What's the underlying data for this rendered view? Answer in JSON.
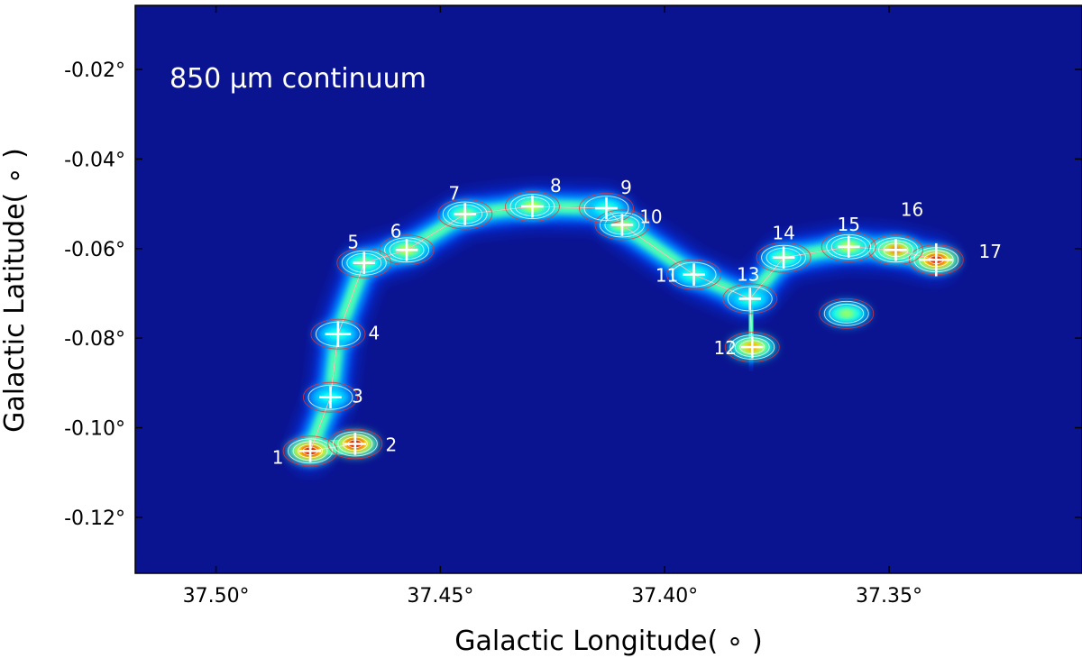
{
  "chart_data": {
    "type": "heatmap",
    "title": "850 μm continuum",
    "xlabel": "Galactic Longitude( ∘ )",
    "ylabel": "Galactic Latitude( ∘ )",
    "x_inverted": true,
    "xlim": [
      37.518,
      37.307
    ],
    "ylim": [
      -0.1325,
      -0.0057
    ],
    "xticks": [
      37.5,
      37.45,
      37.4,
      37.35
    ],
    "xtick_labels": [
      "37.50°",
      "37.45°",
      "37.40°",
      "37.35°"
    ],
    "yticks": [
      -0.02,
      -0.04,
      -0.06,
      -0.08,
      -0.1,
      -0.12
    ],
    "ytick_labels": [
      "-0.02°",
      "-0.04°",
      "-0.06°",
      "-0.08°",
      "-0.10°",
      "-0.12°"
    ],
    "colormap": "jet",
    "colors": {
      "background": "#0a1490",
      "contour_low": "#ff2a2a",
      "contour": "#ffffff",
      "marker": "#ffffff"
    },
    "sources": [
      {
        "id": "1",
        "l": 37.479,
        "b": -0.1052
      },
      {
        "id": "2",
        "l": 37.469,
        "b": -0.1036
      },
      {
        "id": "3",
        "l": 37.4745,
        "b": -0.0932
      },
      {
        "id": "4",
        "l": 37.4728,
        "b": -0.0791
      },
      {
        "id": "5",
        "l": 37.467,
        "b": -0.0632
      },
      {
        "id": "6",
        "l": 37.4575,
        "b": -0.0603
      },
      {
        "id": "7",
        "l": 37.4445,
        "b": -0.0523
      },
      {
        "id": "8",
        "l": 37.4295,
        "b": -0.0506
      },
      {
        "id": "9",
        "l": 37.413,
        "b": -0.051
      },
      {
        "id": "10",
        "l": 37.4095,
        "b": -0.0547
      },
      {
        "id": "11",
        "l": 37.3935,
        "b": -0.0658
      },
      {
        "id": "12",
        "l": 37.3805,
        "b": -0.082
      },
      {
        "id": "13",
        "l": 37.381,
        "b": -0.0712
      },
      {
        "id": "14",
        "l": 37.3735,
        "b": -0.062
      },
      {
        "id": "15",
        "l": 37.359,
        "b": -0.0596
      },
      {
        "id": "16",
        "l": 37.3485,
        "b": -0.0603
      },
      {
        "id": "17",
        "l": 37.3395,
        "b": -0.0625
      }
    ],
    "emission_peaks": [
      {
        "l": 37.479,
        "b": -0.1052,
        "intensity": 1.0
      },
      {
        "l": 37.469,
        "b": -0.1036,
        "intensity": 1.0
      },
      {
        "l": 37.3395,
        "b": -0.0625,
        "intensity": 1.0
      },
      {
        "l": 37.3485,
        "b": -0.0603,
        "intensity": 0.75
      },
      {
        "l": 37.3805,
        "b": -0.082,
        "intensity": 0.7
      },
      {
        "l": 37.4575,
        "b": -0.0603,
        "intensity": 0.5
      },
      {
        "l": 37.4295,
        "b": -0.0506,
        "intensity": 0.5
      },
      {
        "l": 37.4095,
        "b": -0.0547,
        "intensity": 0.48
      },
      {
        "l": 37.359,
        "b": -0.0596,
        "intensity": 0.5
      },
      {
        "l": 37.3595,
        "b": -0.0745,
        "intensity": 0.42
      },
      {
        "l": 37.4445,
        "b": -0.0523,
        "intensity": 0.42
      },
      {
        "l": 37.467,
        "b": -0.0632,
        "intensity": 0.4
      },
      {
        "l": 37.3735,
        "b": -0.062,
        "intensity": 0.38
      },
      {
        "l": 37.3935,
        "b": -0.0658,
        "intensity": 0.32
      },
      {
        "l": 37.381,
        "b": -0.0712,
        "intensity": 0.3
      },
      {
        "l": 37.4728,
        "b": -0.0791,
        "intensity": 0.28
      },
      {
        "l": 37.4745,
        "b": -0.0932,
        "intensity": 0.26
      },
      {
        "l": 37.413,
        "b": -0.051,
        "intensity": 0.3
      }
    ]
  }
}
